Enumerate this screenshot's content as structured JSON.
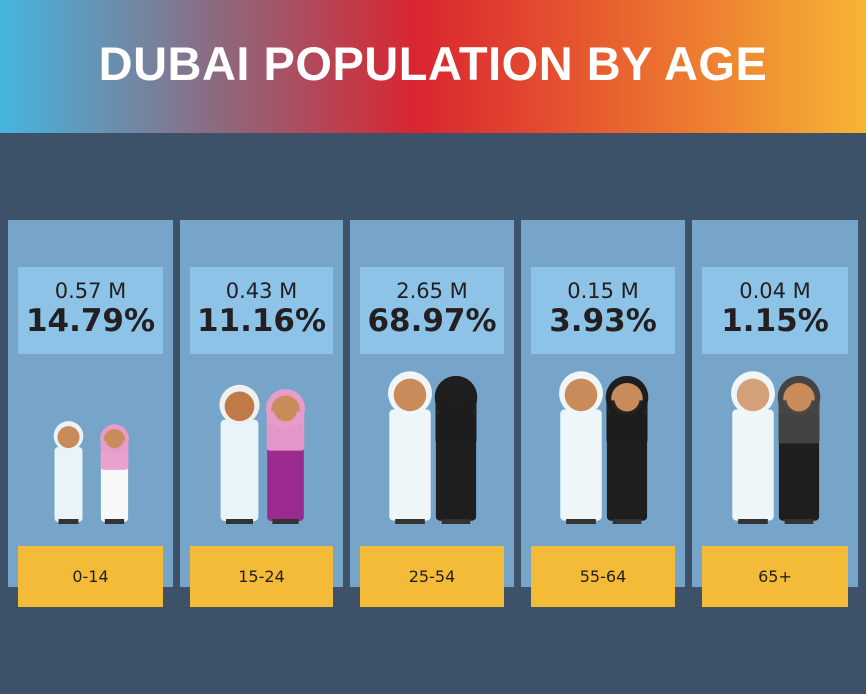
{
  "header": {
    "title": "DUBAI POPULATION BY AGE"
  },
  "colors": {
    "panel": "#77a5c9",
    "info_box": "#8cc3e6",
    "label_box": "#f3bb37",
    "background": "#3d5169"
  },
  "groups": [
    {
      "age": "0-14",
      "population": "0.57 M",
      "percent": "14.79%",
      "figures": "children"
    },
    {
      "age": "15-24",
      "population": "0.43 M",
      "percent": "11.16%",
      "figures": "youth"
    },
    {
      "age": "25-54",
      "population": "2.65 M",
      "percent": "68.97%",
      "figures": "adults"
    },
    {
      "age": "55-64",
      "population": "0.15 M",
      "percent": "3.93%",
      "figures": "older-adults"
    },
    {
      "age": "65+",
      "population": "0.04 M",
      "percent": "1.15%",
      "figures": "elderly"
    }
  ],
  "chart_data": {
    "type": "table",
    "title": "DUBAI POPULATION BY AGE",
    "categories": [
      "0-14",
      "15-24",
      "25-54",
      "55-64",
      "65+"
    ],
    "series": [
      {
        "name": "population_millions",
        "values": [
          0.57,
          0.43,
          2.65,
          0.15,
          0.04
        ]
      },
      {
        "name": "percent",
        "values": [
          14.79,
          11.16,
          68.97,
          3.93,
          1.15
        ]
      }
    ]
  }
}
